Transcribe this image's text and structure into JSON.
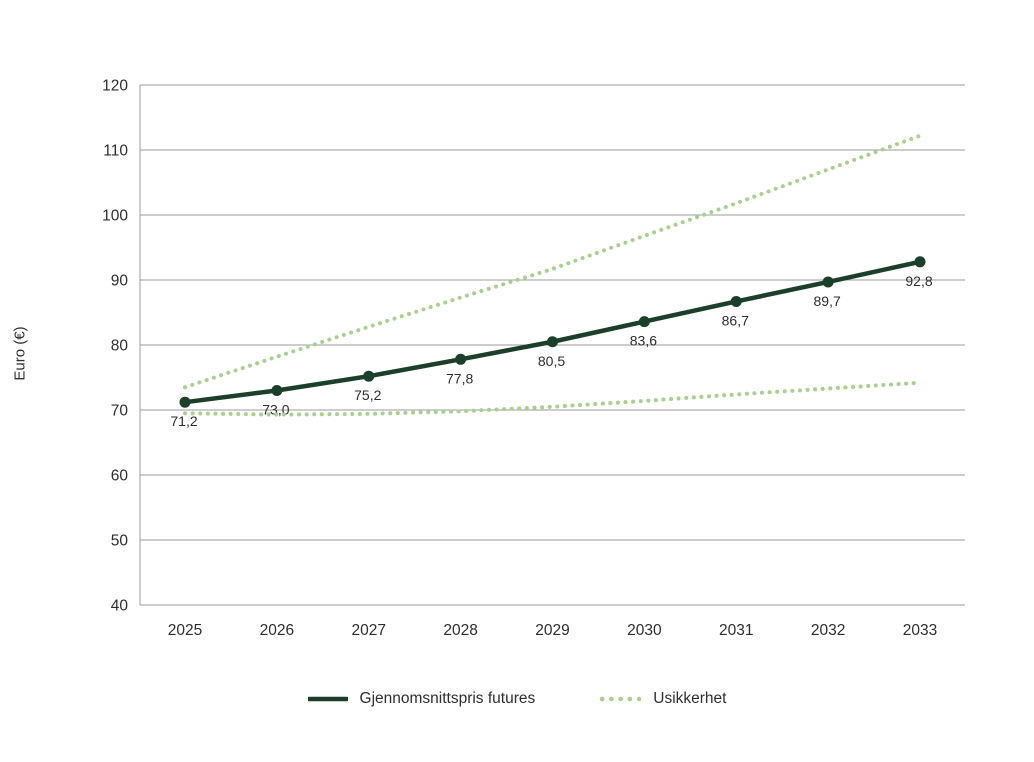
{
  "chart_data": {
    "type": "line",
    "title": "",
    "xlabel": "",
    "ylabel": "Euro (€)",
    "ylim": [
      40,
      120
    ],
    "ytick_step": 10,
    "grid": true,
    "legend_position": "bottom",
    "x": [
      "2025",
      "2026",
      "2027",
      "2028",
      "2029",
      "2030",
      "2031",
      "2032",
      "2033"
    ],
    "series": [
      {
        "name": "Gjennomsnittspris futures",
        "values": [
          71.2,
          73.0,
          75.2,
          77.8,
          80.5,
          83.6,
          86.7,
          89.7,
          92.8
        ],
        "labels": [
          "71,2",
          "73,0",
          "75,2",
          "77,8",
          "80,5",
          "83,6",
          "86,7",
          "89,7",
          "92,8"
        ],
        "color": "#1c3f2b",
        "dashed": false,
        "markers": true,
        "width": 4.5
      },
      {
        "name": "Usikkerhet",
        "values": [
          73.5,
          78.2,
          82.8,
          87.3,
          91.7,
          96.8,
          101.8,
          107.0,
          112.2
        ],
        "labels": null,
        "color": "#a9cf92",
        "dashed": true,
        "markers": false,
        "width": 4
      },
      {
        "name": "Usikkerhet",
        "values": [
          69.5,
          69.3,
          69.4,
          69.8,
          70.5,
          71.4,
          72.4,
          73.3,
          74.2
        ],
        "labels": null,
        "color": "#a9cf92",
        "dashed": true,
        "markers": false,
        "width": 4
      }
    ],
    "legend": [
      {
        "label": "Gjennomsnittspris futures",
        "style": "solid",
        "color": "#1c3f2b"
      },
      {
        "label": "Usikkerhet",
        "style": "dotted",
        "color": "#a9cf92"
      }
    ],
    "colors": {
      "grid": "#9b9b9b",
      "text": "#2e2e2e",
      "background": "#ffffff"
    }
  }
}
